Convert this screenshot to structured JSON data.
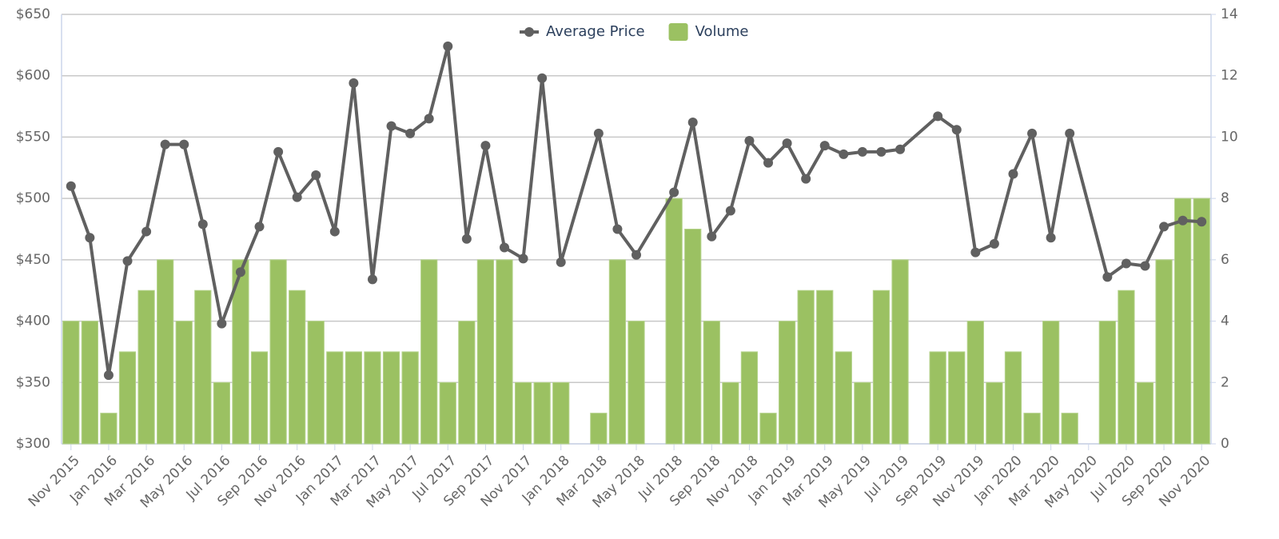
{
  "chart_data": {
    "type": "combo",
    "categories": [
      "Nov 2015",
      null,
      "Jan 2016",
      null,
      "Mar 2016",
      null,
      "May 2016",
      null,
      "Jul 2016",
      null,
      "Sep 2016",
      null,
      "Nov 2016",
      null,
      "Jan 2017",
      null,
      "Mar 2017",
      null,
      "May 2017",
      null,
      "Jul 2017",
      null,
      "Sep 2017",
      null,
      "Nov 2017",
      null,
      "Jan 2018",
      null,
      "Mar 2018",
      null,
      "May 2018",
      null,
      "Jul 2018",
      null,
      "Sep 2018",
      null,
      "Nov 2018",
      null,
      "Jan 2019",
      null,
      "Mar 2019",
      null,
      "May 2019",
      null,
      "Jul 2019",
      null,
      "Sep 2019",
      null,
      "Nov 2019",
      null,
      "Jan 2020",
      null,
      "Mar 2020",
      null,
      "May 2020",
      null,
      "Jul 2020",
      null,
      "Sep 2020",
      null,
      "Nov 2020"
    ],
    "series": [
      {
        "name": "Average Price",
        "type": "line",
        "color": "#606060",
        "values": [
          510,
          468,
          356,
          449,
          473,
          544,
          544,
          479,
          398,
          440,
          477,
          538,
          501,
          519,
          473,
          594,
          434,
          559,
          553,
          565,
          624,
          467,
          543,
          460,
          451,
          598,
          448,
          null,
          553,
          475,
          454,
          null,
          505,
          562,
          469,
          490,
          547,
          529,
          545,
          516,
          543,
          536,
          538,
          538,
          540,
          null,
          567,
          556,
          456,
          463,
          520,
          553,
          468,
          553,
          null,
          436,
          447,
          445,
          477,
          482,
          481
        ]
      },
      {
        "name": "Volume",
        "type": "bar",
        "axis": "y2",
        "color": "#9bc162",
        "values": [
          4,
          4,
          1,
          3,
          5,
          6,
          4,
          5,
          2,
          6,
          3,
          6,
          5,
          4,
          3,
          3,
          3,
          3,
          3,
          6,
          2,
          4,
          6,
          6,
          2,
          2,
          2,
          null,
          1,
          6,
          4,
          null,
          8,
          7,
          4,
          2,
          3,
          1,
          4,
          5,
          5,
          3,
          2,
          5,
          6,
          null,
          3,
          3,
          4,
          2,
          3,
          1,
          4,
          1,
          null,
          4,
          5,
          2,
          6,
          8,
          8
        ]
      }
    ],
    "ylim": [
      300,
      650
    ],
    "yticks": [
      {
        "value": 300,
        "label": "$300"
      },
      {
        "value": 350,
        "label": "$350"
      },
      {
        "value": 400,
        "label": "$400"
      },
      {
        "value": 450,
        "label": "$450"
      },
      {
        "value": 500,
        "label": "$500"
      },
      {
        "value": 550,
        "label": "$550"
      },
      {
        "value": 600,
        "label": "$600"
      },
      {
        "value": 650,
        "label": "$650"
      }
    ],
    "y2lim": [
      0,
      14
    ],
    "y2ticks": [
      0,
      2,
      4,
      6,
      8,
      10,
      12,
      14
    ],
    "grid": true,
    "legend": "top"
  }
}
